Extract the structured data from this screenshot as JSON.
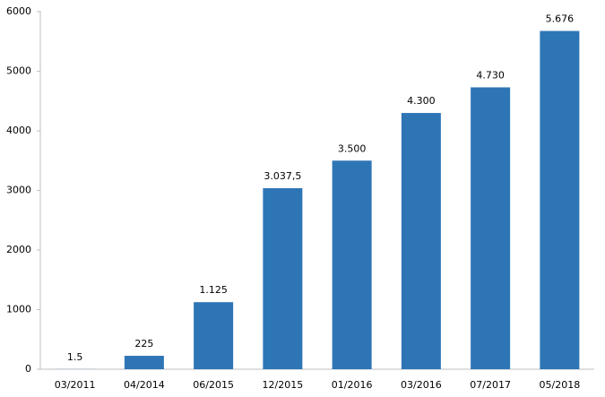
{
  "chart_data": {
    "type": "bar",
    "categories": [
      "03/2011",
      "04/2014",
      "06/2015",
      "12/2015",
      "01/2016",
      "03/2016",
      "07/2017",
      "05/2018"
    ],
    "values": [
      1.5,
      225,
      1125,
      3037.5,
      3500,
      4300,
      4730,
      5676
    ],
    "value_labels": [
      "1.5",
      "225",
      "1.125",
      "3.037,5",
      "3.500",
      "4.300",
      "4.730",
      "5.676"
    ],
    "color": "#2e75b6",
    "ylim": [
      0,
      6000
    ],
    "yticks": [
      0,
      1000,
      2000,
      3000,
      4000,
      5000,
      6000
    ],
    "grid": false
  }
}
